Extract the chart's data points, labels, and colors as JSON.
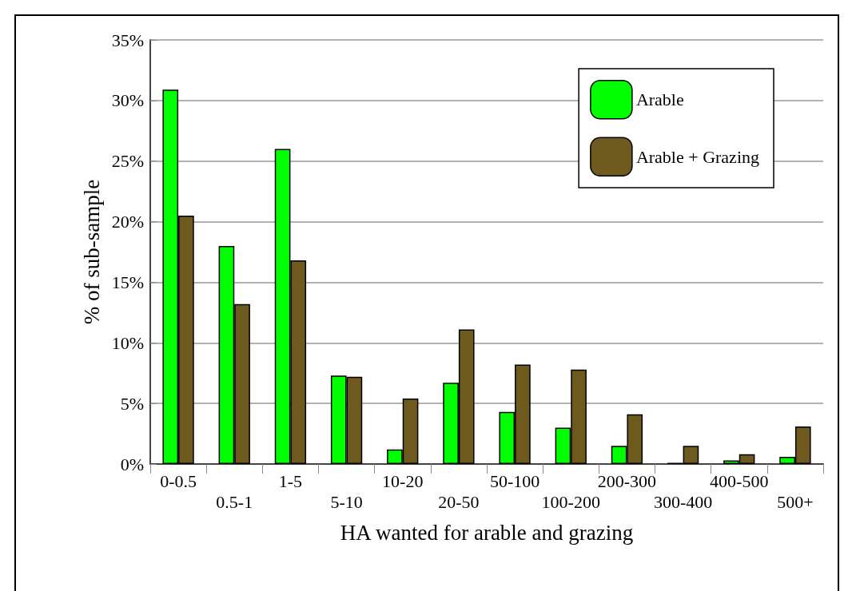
{
  "chart_data": {
    "type": "bar",
    "xlabel": "HA wanted for arable and grazing",
    "ylabel": "% of sub-sample",
    "categories": [
      "0-0.5",
      "0.5-1",
      "1-5",
      "5-10",
      "10-20",
      "20-50",
      "50-100",
      "100-200",
      "200-300",
      "300-400",
      "400-500",
      "500+"
    ],
    "series": [
      {
        "name": "Arable",
        "color": "#00ff00",
        "values": [
          30.9,
          18.0,
          26.0,
          7.3,
          1.2,
          6.7,
          4.3,
          3.0,
          1.5,
          0.1,
          0.3,
          0.6
        ]
      },
      {
        "name": "Arable + Grazing",
        "color": "#6e5a1e",
        "values": [
          20.5,
          13.2,
          16.8,
          7.2,
          5.4,
          11.1,
          8.2,
          7.8,
          4.1,
          1.5,
          0.8,
          3.1
        ]
      }
    ],
    "ylim": [
      0,
      35
    ],
    "yticks": [
      {
        "value": 0,
        "label": "0%"
      },
      {
        "value": 5,
        "label": "5%"
      },
      {
        "value": 10,
        "label": "10%"
      },
      {
        "value": 15,
        "label": "15%"
      },
      {
        "value": 20,
        "label": "20%"
      },
      {
        "value": 25,
        "label": "25%"
      },
      {
        "value": 30,
        "label": "30%"
      },
      {
        "value": 35,
        "label": "35%"
      }
    ],
    "grid": "y",
    "legend": "top right"
  }
}
